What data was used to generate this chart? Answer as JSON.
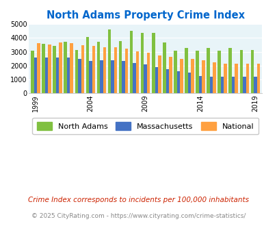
{
  "title": "North Adams Property Crime Index",
  "years": [
    1999,
    2000,
    2001,
    2002,
    2003,
    2004,
    2005,
    2006,
    2007,
    2008,
    2009,
    2010,
    2011,
    2012,
    2013,
    2014,
    2015,
    2016,
    2017,
    2018,
    2019
  ],
  "north_adams": [
    3100,
    3550,
    3400,
    3700,
    3150,
    4050,
    3700,
    4620,
    3780,
    4520,
    4350,
    4380,
    3670,
    3100,
    3280,
    3100,
    3280,
    3100,
    3280,
    3130,
    3130
  ],
  "massachusetts": [
    2560,
    2600,
    2600,
    2570,
    2480,
    2350,
    2380,
    2400,
    2320,
    2160,
    2060,
    1880,
    1720,
    1560,
    1460,
    1260,
    1200,
    1200,
    1200,
    1200,
    1200
  ],
  "national": [
    3600,
    3510,
    3680,
    3600,
    3490,
    3440,
    3340,
    3330,
    3250,
    3040,
    2950,
    2750,
    2610,
    2500,
    2470,
    2370,
    2210,
    2110,
    2110,
    2110,
    2110
  ],
  "north_adams_color": "#80c040",
  "massachusetts_color": "#4472c4",
  "national_color": "#ffa040",
  "bg_color": "#e8f4f8",
  "title_color": "#0066cc",
  "ylim": [
    0,
    5000
  ],
  "yticks": [
    0,
    1000,
    2000,
    3000,
    4000,
    5000
  ],
  "xtick_labels": [
    "1999",
    "2004",
    "2009",
    "2014",
    "2019"
  ],
  "xtick_years": [
    1999,
    2004,
    2009,
    2014,
    2019
  ],
  "footnote": "Crime Index corresponds to incidents per 100,000 inhabitants",
  "copyright": "© 2025 CityRating.com - https://www.cityrating.com/crime-statistics/",
  "footnote_color": "#cc2200",
  "copyright_color": "#888888"
}
